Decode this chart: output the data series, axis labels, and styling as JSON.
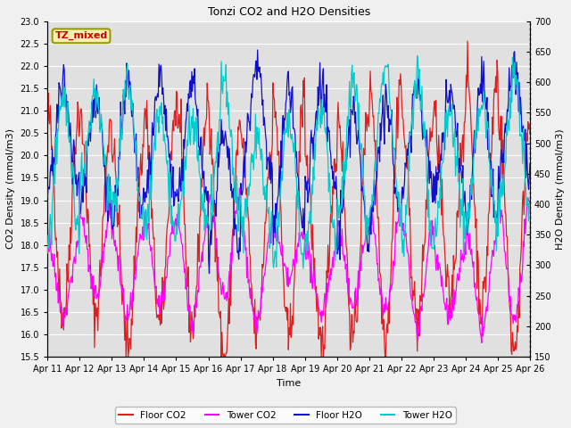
{
  "title": "Tonzi CO2 and H2O Densities",
  "xlabel": "Time",
  "ylabel_left": "CO2 Density (mmol/m3)",
  "ylabel_right": "H2O Density (mmol/m3)",
  "ylim_left": [
    15.5,
    23.0
  ],
  "ylim_right": [
    150,
    700
  ],
  "yticks_left": [
    15.5,
    16.0,
    16.5,
    17.0,
    17.5,
    18.0,
    18.5,
    19.0,
    19.5,
    20.0,
    20.5,
    21.0,
    21.5,
    22.0,
    22.5,
    23.0
  ],
  "yticks_right": [
    150,
    200,
    250,
    300,
    350,
    400,
    450,
    500,
    550,
    600,
    650,
    700
  ],
  "xtick_labels": [
    "Apr 11",
    "Apr 12",
    "Apr 13",
    "Apr 14",
    "Apr 15",
    "Apr 16",
    "Apr 17",
    "Apr 18",
    "Apr 19",
    "Apr 20",
    "Apr 21",
    "Apr 22",
    "Apr 23",
    "Apr 24",
    "Apr 25",
    "Apr 26"
  ],
  "annotation_text": "TZ_mixed",
  "annotation_color": "#cc0000",
  "annotation_bg": "#f5f0b0",
  "annotation_border": "#999900",
  "colors": {
    "floor_co2": "#dd2020",
    "tower_co2": "#ff00ff",
    "floor_h2o": "#1010cc",
    "tower_h2o": "#00cccc"
  },
  "legend_labels": [
    "Floor CO2",
    "Tower CO2",
    "Floor H2O",
    "Tower H2O"
  ],
  "plot_bg_color": "#e0e0e0",
  "fig_bg_color": "#f0f0f0",
  "grid_color": "#ffffff"
}
